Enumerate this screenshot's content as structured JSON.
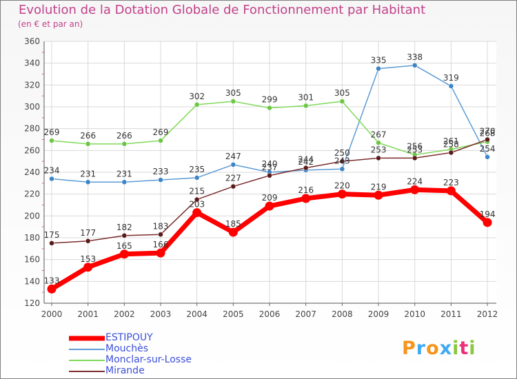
{
  "chart_data": {
    "type": "line",
    "title": "Evolution de la Dotation Globale de Fonctionnement par Habitant",
    "subtitle": "(en € et par an)",
    "xlabel": "",
    "ylabel": "",
    "ylim": [
      120,
      360
    ],
    "yticks": [
      120,
      140,
      160,
      180,
      200,
      220,
      240,
      260,
      280,
      300,
      320,
      340,
      360
    ],
    "grid": true,
    "categories": [
      "2000",
      "2001",
      "2002",
      "2003",
      "2004",
      "2005",
      "2006",
      "2007",
      "2008",
      "2009",
      "2010",
      "2011",
      "2012"
    ],
    "series": [
      {
        "name": "ESTIPOUY",
        "color": "#ff0000",
        "values": [
          133,
          153,
          165,
          166,
          203,
          185,
          209,
          216,
          220,
          219,
          224,
          223,
          194
        ],
        "labels": [
          "133",
          "153",
          "165",
          "166",
          "203",
          "185",
          "209",
          "216",
          "220",
          "219",
          "224",
          "223",
          "194"
        ]
      },
      {
        "name": "Mouchès",
        "color": "#5b9bd5",
        "values": [
          234,
          231,
          231,
          233,
          235,
          247,
          240,
          242,
          243,
          335,
          338,
          319,
          254
        ],
        "labels": [
          "234",
          "231",
          "231",
          "233",
          "235",
          "247",
          "240",
          "242",
          "243",
          "335",
          "338",
          "319",
          "254"
        ]
      },
      {
        "name": "Monclar-sur-Losse",
        "color": "#7ed957",
        "values": [
          269,
          266,
          266,
          269,
          302,
          305,
          299,
          301,
          305,
          267,
          256,
          261,
          268
        ],
        "labels": [
          "269",
          "266",
          "266",
          "269",
          "302",
          "305",
          "299",
          "301",
          "305",
          "267",
          "256",
          "261",
          "268"
        ]
      },
      {
        "name": "Mirande",
        "color": "#7b2c2c",
        "values": [
          175,
          177,
          182,
          183,
          215,
          227,
          237,
          244,
          250,
          253,
          253,
          258,
          270
        ],
        "labels": [
          "175",
          "177",
          "182",
          "183",
          "215",
          "227",
          "237",
          "244",
          "250",
          "253",
          "253",
          "258",
          "270"
        ]
      }
    ]
  },
  "legend": [
    "ESTIPOUY",
    "Mouchès",
    "Monclar-sur-Losse",
    "Mirande"
  ],
  "logo": {
    "letters": [
      "P",
      "r",
      "o",
      "x",
      "i",
      "t",
      "i"
    ],
    "colors": [
      "#f7941d",
      "#3fa9f5",
      "#f7941d",
      "#3fa9f5",
      "#8cc63f",
      "#ec2f7b",
      "#8cc63f"
    ]
  }
}
